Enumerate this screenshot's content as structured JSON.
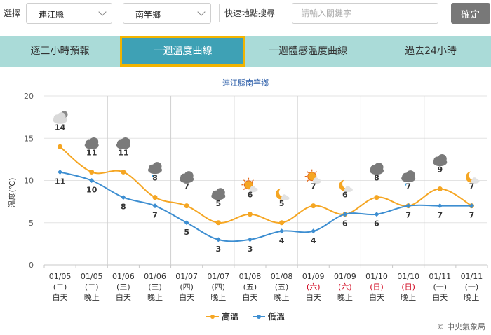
{
  "toolbar": {
    "select_label": "選擇",
    "county": "連江縣",
    "township": "南竿鄉",
    "search_label": "快速地點搜尋",
    "search_placeholder": "請輸入關鍵字",
    "confirm_label": "確定"
  },
  "tabs": [
    {
      "label": "逐三小時預報",
      "active": false
    },
    {
      "label": "一週溫度曲線",
      "active": true
    },
    {
      "label": "一週體感溫度曲線",
      "active": false
    },
    {
      "label": "過去24小時",
      "active": false
    }
  ],
  "colors": {
    "high": "#f5a623",
    "low": "#3d8ed1",
    "title": "#2a5ca8",
    "weekend": "#d0021b"
  },
  "chart_data": {
    "type": "line",
    "title": "連江縣南竿鄉",
    "ylabel": "溫度(℃)",
    "ylim": [
      0,
      20
    ],
    "yticks": [
      0,
      5,
      10,
      15,
      20
    ],
    "x": [
      {
        "date": "01/05",
        "dow": "(二)",
        "period": "白天",
        "weekend": false
      },
      {
        "date": "01/05",
        "dow": "(二)",
        "period": "晚上",
        "weekend": false
      },
      {
        "date": "01/06",
        "dow": "(三)",
        "period": "白天",
        "weekend": false
      },
      {
        "date": "01/06",
        "dow": "(三)",
        "period": "晚上",
        "weekend": false
      },
      {
        "date": "01/07",
        "dow": "(四)",
        "period": "白天",
        "weekend": false
      },
      {
        "date": "01/07",
        "dow": "(四)",
        "period": "晚上",
        "weekend": false
      },
      {
        "date": "01/08",
        "dow": "(五)",
        "period": "白天",
        "weekend": false
      },
      {
        "date": "01/08",
        "dow": "(五)",
        "period": "晚上",
        "weekend": false
      },
      {
        "date": "01/09",
        "dow": "(六)",
        "period": "白天",
        "weekend": true
      },
      {
        "date": "01/09",
        "dow": "(六)",
        "period": "晚上",
        "weekend": true
      },
      {
        "date": "01/10",
        "dow": "(日)",
        "period": "白天",
        "weekend": true
      },
      {
        "date": "01/10",
        "dow": "(日)",
        "period": "晚上",
        "weekend": true
      },
      {
        "date": "01/11",
        "dow": "(一)",
        "period": "白天",
        "weekend": false
      },
      {
        "date": "01/11",
        "dow": "(一)",
        "period": "晚上",
        "weekend": false
      }
    ],
    "series": [
      {
        "name": "高溫",
        "values": [
          14,
          11,
          11,
          8,
          7,
          5,
          6,
          5,
          7,
          6,
          8,
          7,
          9,
          7
        ]
      },
      {
        "name": "低溫",
        "values": [
          11,
          10,
          8,
          7,
          5,
          3,
          3,
          4,
          4,
          6,
          6,
          7,
          7,
          7
        ]
      }
    ],
    "icons": [
      "cloudy-icon",
      "cloudy-icon",
      "cloudy-icon",
      "rain-cloud-icon",
      "cloudy-icon",
      "cloudy-icon",
      "sun-cloud-icon",
      "moon-cloud-icon",
      "sun-cloud-icon",
      "moon-cloud-icon",
      "cloudy-icon",
      "rain-cloud-icon",
      "cloudy-icon",
      "moon-cloud-icon"
    ],
    "legend": "bottom-center",
    "grid": true
  },
  "footer": {
    "copyright": "© 中央氣象局"
  }
}
